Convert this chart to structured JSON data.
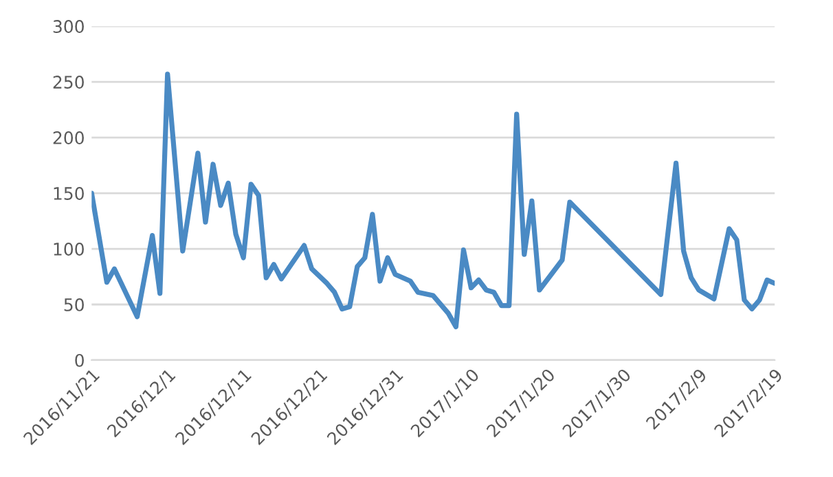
{
  "chart_data": {
    "type": "line",
    "x": [
      "2016-11-21",
      "2016-11-23",
      "2016-11-24",
      "2016-11-27",
      "2016-11-29",
      "2016-11-30",
      "2016-12-01",
      "2016-12-03",
      "2016-12-05",
      "2016-12-06",
      "2016-12-07",
      "2016-12-08",
      "2016-12-09",
      "2016-12-10",
      "2016-12-11",
      "2016-12-12",
      "2016-12-13",
      "2016-12-14",
      "2016-12-15",
      "2016-12-16",
      "2016-12-19",
      "2016-12-20",
      "2016-12-22",
      "2016-12-23",
      "2016-12-24",
      "2016-12-25",
      "2016-12-26",
      "2016-12-27",
      "2016-12-28",
      "2016-12-29",
      "2016-12-30",
      "2016-12-31",
      "2017-01-02",
      "2017-01-03",
      "2017-01-05",
      "2017-01-07",
      "2017-01-08",
      "2017-01-09",
      "2017-01-10",
      "2017-01-11",
      "2017-01-12",
      "2017-01-13",
      "2017-01-14",
      "2017-01-15",
      "2017-01-16",
      "2017-01-17",
      "2017-01-18",
      "2017-01-19",
      "2017-01-22",
      "2017-01-23",
      "2017-02-04",
      "2017-02-06",
      "2017-02-07",
      "2017-02-08",
      "2017-02-09",
      "2017-02-11",
      "2017-02-13",
      "2017-02-14",
      "2017-02-15",
      "2017-02-16",
      "2017-02-17",
      "2017-02-18",
      "2017-02-19"
    ],
    "series": [
      {
        "color": "#4a8ac4",
        "values": [
          150,
          70,
          82,
          39,
          112,
          60,
          257,
          98,
          186,
          124,
          176,
          139,
          159,
          113,
          92,
          158,
          148,
          74,
          86,
          73,
          103,
          82,
          69,
          61,
          46,
          48,
          84,
          92,
          131,
          71,
          92,
          77,
          71,
          61,
          58,
          42,
          30,
          99,
          65,
          72,
          63,
          61,
          49,
          49,
          221,
          95,
          143,
          63,
          90,
          142,
          59,
          177,
          98,
          74,
          63,
          55,
          118,
          108,
          54,
          46,
          54,
          72,
          69
        ]
      }
    ],
    "xlim": [
      "2016-11-21",
      "2017-02-19"
    ],
    "xticks": [
      {
        "value": "2016-11-21",
        "label": "2016/11/21"
      },
      {
        "value": "2016-12-01",
        "label": "2016/12/1"
      },
      {
        "value": "2016-12-11",
        "label": "2016/12/11"
      },
      {
        "value": "2016-12-21",
        "label": "2016/12/21"
      },
      {
        "value": "2016-12-31",
        "label": "2016/12/31"
      },
      {
        "value": "2017-01-10",
        "label": "2017/1/10"
      },
      {
        "value": "2017-01-20",
        "label": "2017/1/20"
      },
      {
        "value": "2017-01-30",
        "label": "2017/1/30"
      },
      {
        "value": "2017-02-09",
        "label": "2017/2/9"
      },
      {
        "value": "2017-02-19",
        "label": "2017/2/19"
      }
    ],
    "ylim": [
      0,
      300
    ],
    "yticks": [
      0,
      50,
      100,
      150,
      200,
      250,
      300
    ],
    "grid": "y",
    "marker": "none",
    "line_style": "solid"
  }
}
